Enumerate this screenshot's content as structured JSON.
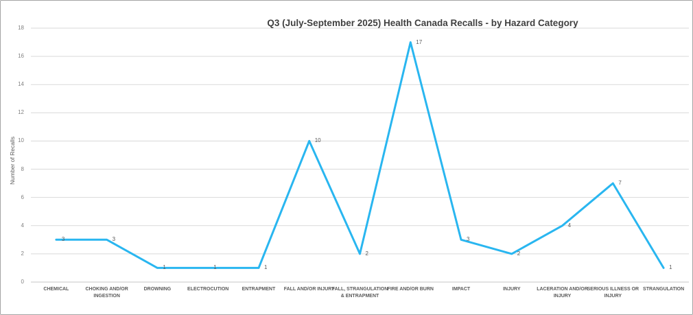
{
  "chart_data": {
    "type": "line",
    "title": "Q3 (July-September 2025) Health Canada Recalls - by Hazard Category",
    "ylabel": "Number of Recalls",
    "xlabel": "",
    "categories": [
      "CHEMICAL",
      "CHOKING AND/OR INGESTION",
      "DROWNING",
      "ELECTROCUTION",
      "ENTRAPMENT",
      "FALL AND/OR INJURY",
      "FALL, STRANGULATION & ENTRAPMENT",
      "FIRE AND/OR BURN",
      "IMPACT",
      "INJURY",
      "LACERATION AND/OR INJURY",
      "SERIOUS ILLNESS OR INJURY",
      "STRANGULATION"
    ],
    "values": [
      3,
      3,
      1,
      1,
      1,
      10,
      2,
      17,
      3,
      2,
      4,
      7,
      1
    ],
    "ylim": [
      0,
      18
    ],
    "ytick_step": 2,
    "grid": "horizontal",
    "legend": "none",
    "data_label_position": "right",
    "colors": {
      "line": "#29b6f0",
      "gridline": "#d9d9d9",
      "axis_line": "#c6c6c6",
      "title_text": "#3f3f3f",
      "tick_text": "#808080",
      "label_text": "#595959",
      "background": "#ffffff",
      "frame_border": "#a3a3a3"
    }
  }
}
